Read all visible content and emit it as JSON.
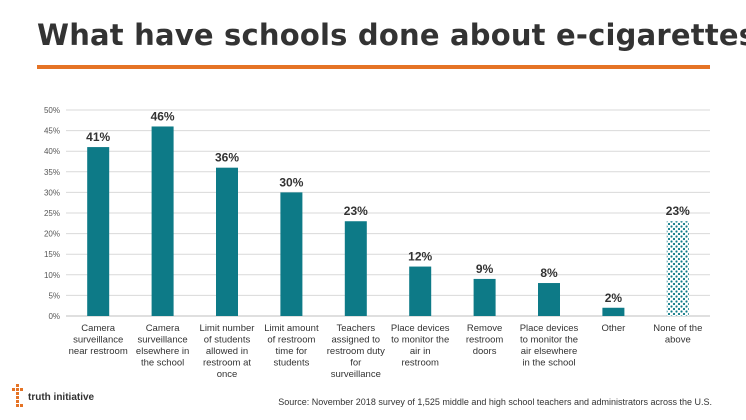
{
  "header": {
    "title": "What have schools done about e-cigarettes?"
  },
  "chart_data": {
    "type": "bar",
    "title": "What have schools done about e-cigarettes?",
    "xlabel": "",
    "ylabel": "",
    "ylim": [
      0,
      50
    ],
    "yticks": [
      "0%",
      "5%",
      "10%",
      "15%",
      "20%",
      "25%",
      "30%",
      "35%",
      "40%",
      "45%",
      "50%"
    ],
    "grid": true,
    "legend": "none",
    "categories": [
      "Camera surveillance near restroom",
      "Camera surveillance elsewhere in the school",
      "Limit number of students allowed in restroom at once",
      "Limit amount of restroom time for students",
      "Teachers assigned to restroom duty for surveillance",
      "Place devices to monitor the air in restroom",
      "Remove restroom doors",
      "Place devices to monitor the air elsewhere in the school",
      "Other",
      "None of the above"
    ],
    "category_lines": [
      [
        "Camera",
        "surveillance",
        "near restroom"
      ],
      [
        "Camera",
        "surveillance",
        "elsewhere in",
        "the school"
      ],
      [
        "Limit number",
        "of students",
        "allowed in",
        "restroom at",
        "once"
      ],
      [
        "Limit amount",
        "of restroom",
        "time for",
        "students"
      ],
      [
        "Teachers",
        "assigned to",
        "restroom duty",
        "for",
        "surveillance"
      ],
      [
        "Place devices",
        "to monitor the",
        "air in",
        "restroom"
      ],
      [
        "Remove",
        "restroom",
        "doors"
      ],
      [
        "Place devices",
        "to monitor the",
        "air elsewhere",
        "in the school"
      ],
      [
        "Other"
      ],
      [
        "None of the",
        "above"
      ]
    ],
    "values": [
      41,
      46,
      36,
      30,
      23,
      12,
      9,
      8,
      2,
      23
    ],
    "data_labels": [
      "41%",
      "46%",
      "36%",
      "30%",
      "23%",
      "12%",
      "9%",
      "8%",
      "2%",
      "23%"
    ],
    "bar_color": "#0d7a87",
    "highlight_pattern_index": 9
  },
  "footer": {
    "source": "Source: November 2018 survey of 1,525 middle and high school teachers and administrators across the U.S.",
    "logo_text": "truth initiative",
    "logo_icon": "truth-initiative-logo-icon",
    "logo_colors": [
      "#e57325",
      "#333333"
    ]
  },
  "colors": {
    "accent": "#e57325",
    "title": "#333333",
    "grid": "#d9d9d9"
  }
}
